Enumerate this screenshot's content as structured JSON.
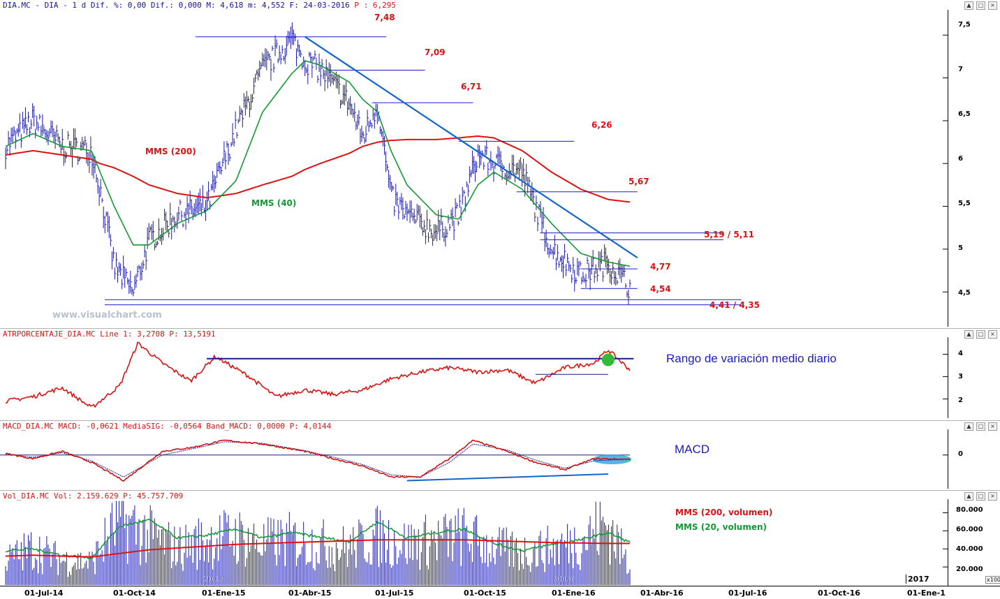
{
  "panels": {
    "price": {
      "title_left": "DIA.MC - DIA -  1 d Dif. %: 0,00 Dif.: 0,000 M: 4,618 m: 4,552 F: 24-03-2016 ",
      "title_p": "P : 6,295",
      "ma200_label": "MMS (200)",
      "ma40_label": "MMS (40)",
      "levels": [
        "7,48",
        "7,09",
        "6,71",
        "6,26",
        "5,67",
        "5,19 / 5,11",
        "4,77",
        "4,54",
        "4,41 / 4,35"
      ],
      "yticks": [
        "7,5",
        "7",
        "6,5",
        "6",
        "5,5",
        "5",
        "4,5"
      ]
    },
    "atr": {
      "title": "ATRPORCENTAJE_DIA.MC Line 1: 3,2708 P: 13,5191",
      "annotation": "Rango de variación medio diario",
      "yticks": [
        "4",
        "3",
        "2"
      ]
    },
    "macd": {
      "title": "MACD_DIA.MC MACD: -0,0621 MediaSIG: -0,0564 Band_MACD: 0,0000 P: 4,0144",
      "annotation": "MACD",
      "yticks": [
        "0"
      ]
    },
    "volume": {
      "title": "Vol_DIA.MC Vol: 2.159.629 P: 45.757.709",
      "ma200_label": "MMS (200, volumen)",
      "ma20_label": "MMS (20, volumen)",
      "yticks": [
        "80.000",
        "60.000",
        "40.000",
        "20.000"
      ],
      "unit": "x100"
    }
  },
  "controls": [
    "▲",
    "□",
    "×"
  ],
  "watermark": "www.visualchart.com",
  "x_labels": [
    "01-Jul-14",
    "01-Oct-14",
    "01-Ene-15",
    "01-Abr-15",
    "01-Jul-15",
    "01-Oct-15",
    "01-Ene-16",
    "01-Abr-16",
    "01-Jul-16",
    "01-Oct-16",
    "01-Ene-1"
  ],
  "year_labels": [
    "2015",
    "2016",
    "2017"
  ],
  "colors": {
    "price_bars": "#1a1aaa",
    "ma200": "#dd1111",
    "ma40": "#119933",
    "trendline": "#1166cc",
    "levels": "#1a1acc",
    "atr_line": "#dd1111",
    "macd_line": "#cc1111",
    "signal_line": "#1a1a99",
    "volume_bars": "#1a1aaa",
    "highlight_green": "#33bb33",
    "highlight_cyan": "#33aadd"
  },
  "chart_data": [
    {
      "type": "line",
      "title": "DIA.MC - DIA",
      "y_axis": {
        "min": 4.2,
        "max": 7.6,
        "ticks": [
          7.5,
          7.0,
          6.5,
          6.0,
          5.5,
          5.0,
          4.5
        ]
      },
      "x": [
        "2014-06-02",
        "2014-07-01",
        "2014-08-01",
        "2014-09-01",
        "2014-09-10",
        "2014-09-25",
        "2014-10-15",
        "2014-11-01",
        "2014-12-01",
        "2015-01-01",
        "2015-02-01",
        "2015-03-01",
        "2015-04-01",
        "2015-04-15",
        "2015-05-01",
        "2015-06-01",
        "2015-06-15",
        "2015-07-01",
        "2015-07-15",
        "2015-08-01",
        "2015-09-01",
        "2015-09-25",
        "2015-10-15",
        "2015-11-01",
        "2015-12-01",
        "2016-01-01",
        "2016-02-01",
        "2016-03-01",
        "2016-03-24"
      ],
      "series": [
        {
          "name": "",
          "values": [
            6.2,
            6.5,
            6.2,
            6.15,
            5.7,
            4.8,
            4.5,
            5.1,
            5.4,
            5.5,
            6.4,
            7.1,
            7.45,
            7.2,
            7.1,
            6.7,
            6.3,
            6.7,
            5.6,
            5.4,
            5.2,
            5.4,
            6.1,
            6.0,
            5.9,
            5.0,
            4.7,
            4.85,
            4.55
          ]
        },
        {
          "name": "MMS (200)",
          "values": [
            6.1,
            6.15,
            6.1,
            6.05,
            6.0,
            5.95,
            5.85,
            5.75,
            5.65,
            5.6,
            5.65,
            5.75,
            5.85,
            5.93,
            6.0,
            6.12,
            6.2,
            6.25,
            6.27,
            6.28,
            6.28,
            6.3,
            6.32,
            6.3,
            6.15,
            5.9,
            5.7,
            5.58,
            5.55
          ]
        },
        {
          "name": "MMS (40)",
          "values": [
            6.2,
            6.35,
            6.2,
            6.15,
            5.9,
            5.5,
            5.05,
            5.05,
            5.3,
            5.45,
            5.8,
            6.6,
            7.05,
            7.2,
            7.15,
            6.95,
            6.75,
            6.6,
            6.15,
            5.75,
            5.4,
            5.35,
            5.75,
            5.9,
            5.7,
            5.3,
            4.95,
            4.85,
            4.8
          ]
        }
      ],
      "levels": [
        7.48,
        7.09,
        6.71,
        6.26,
        5.67,
        5.19,
        5.11,
        4.77,
        4.54,
        4.41,
        4.35
      ],
      "trendline": {
        "from": [
          "2015-04-15",
          7.48
        ],
        "to": [
          "2016-04-01",
          4.9
        ]
      }
    },
    {
      "type": "line",
      "title": "ATRPORCENTAJE_DIA.MC",
      "y_axis": {
        "min": 1.2,
        "max": 4.7,
        "ticks": [
          4,
          3,
          2
        ]
      },
      "x": [
        "2014-06-02",
        "2014-07-01",
        "2014-08-01",
        "2014-09-01",
        "2014-10-01",
        "2014-10-20",
        "2014-11-15",
        "2014-12-15",
        "2015-01-10",
        "2015-02-15",
        "2015-03-15",
        "2015-04-15",
        "2015-05-15",
        "2015-06-15",
        "2015-07-15",
        "2015-08-15",
        "2015-09-15",
        "2015-10-15",
        "2015-11-15",
        "2015-12-15",
        "2016-01-15",
        "2016-02-15",
        "2016-03-01",
        "2016-03-24"
      ],
      "series": [
        {
          "name": "",
          "values": [
            1.9,
            2.1,
            2.5,
            1.6,
            2.6,
            4.5,
            3.6,
            2.8,
            3.9,
            3.0,
            2.1,
            2.4,
            2.2,
            2.4,
            2.9,
            3.2,
            3.4,
            3.2,
            3.3,
            2.7,
            3.4,
            3.6,
            4.2,
            3.3
          ]
        }
      ],
      "reference_level": 3.8
    },
    {
      "type": "line",
      "title": "MACD_DIA.MC",
      "y_axis": {
        "min": -0.45,
        "max": 0.35,
        "ticks": [
          0
        ]
      },
      "x": [
        "2014-06-02",
        "2014-07-01",
        "2014-08-01",
        "2014-09-01",
        "2014-10-05",
        "2014-11-15",
        "2014-12-15",
        "2015-01-20",
        "2015-03-01",
        "2015-04-15",
        "2015-05-15",
        "2015-06-15",
        "2015-07-15",
        "2015-08-15",
        "2015-09-15",
        "2015-10-10",
        "2015-11-15",
        "2015-12-15",
        "2016-01-15",
        "2016-02-15",
        "2016-03-24"
      ],
      "series": [
        {
          "name": "MACD",
          "values": [
            0.02,
            -0.05,
            0.05,
            -0.1,
            -0.35,
            0.05,
            0.1,
            0.2,
            0.15,
            0.05,
            -0.05,
            -0.15,
            -0.3,
            -0.3,
            -0.05,
            0.2,
            0.05,
            -0.1,
            -0.2,
            -0.05,
            -0.06
          ]
        },
        {
          "name": "MediaSIG",
          "values": [
            0.01,
            -0.03,
            0.03,
            -0.08,
            -0.3,
            0.0,
            0.08,
            0.18,
            0.16,
            0.06,
            -0.03,
            -0.13,
            -0.27,
            -0.3,
            -0.1,
            0.15,
            0.07,
            -0.07,
            -0.18,
            -0.08,
            -0.056
          ]
        }
      ]
    },
    {
      "type": "bar",
      "title": "Vol_DIA.MC",
      "unit": "x100",
      "y_axis": {
        "min": 0,
        "max": 95000,
        "ticks": [
          80000,
          60000,
          40000,
          20000
        ]
      },
      "x": [
        "2014-06-02",
        "2014-07-01",
        "2014-08-01",
        "2014-09-01",
        "2014-10-01",
        "2014-11-01",
        "2014-12-01",
        "2015-01-01",
        "2015-02-01",
        "2015-03-01",
        "2015-04-01",
        "2015-05-01",
        "2015-06-01",
        "2015-07-01",
        "2015-08-01",
        "2015-09-01",
        "2015-10-01",
        "2015-11-01",
        "2015-12-01",
        "2016-01-01",
        "2016-02-01",
        "2016-03-01",
        "2016-03-24"
      ],
      "series": [
        {
          "name": "Vol",
          "values": [
            30000,
            45000,
            30000,
            28000,
            80000,
            60000,
            45000,
            55000,
            60000,
            50000,
            55000,
            50000,
            45000,
            60000,
            50000,
            55000,
            60000,
            45000,
            40000,
            45000,
            55000,
            75000,
            21596
          ]
        },
        {
          "name": "MMS (200, volumen)",
          "values": [
            32000,
            33000,
            32000,
            31000,
            35000,
            39000,
            41000,
            43000,
            45000,
            46000,
            47000,
            48000,
            49000,
            50000,
            50000,
            50000,
            50000,
            49000,
            48000,
            47000,
            46500,
            46000,
            46000
          ]
        },
        {
          "name": "MMS (20, volumen)",
          "values": [
            38000,
            40000,
            33000,
            30000,
            65000,
            72000,
            52000,
            55000,
            62000,
            52000,
            58000,
            53000,
            48000,
            70000,
            52000,
            58000,
            62000,
            46000,
            38000,
            45000,
            50000,
            58000,
            47000
          ]
        }
      ]
    }
  ]
}
